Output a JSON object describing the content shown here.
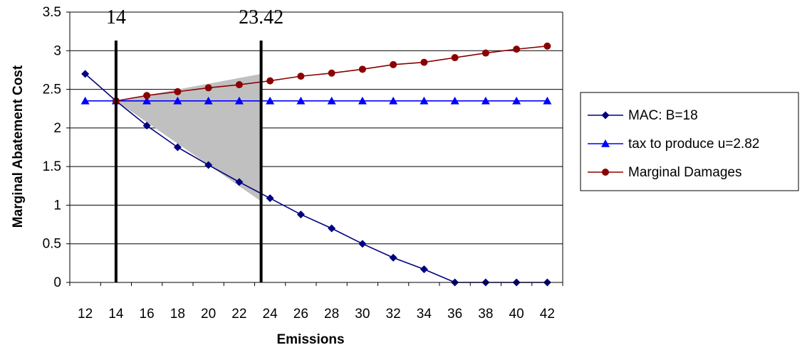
{
  "chart_data": {
    "type": "line",
    "title": "",
    "xlabel": "Emissions",
    "ylabel": "Marginal Abatement Cost",
    "x_ticks": [
      "12",
      "14",
      "16",
      "18",
      "20",
      "22",
      "24",
      "26",
      "28",
      "30",
      "32",
      "34",
      "36",
      "38",
      "40",
      "42"
    ],
    "y_ticks": [
      "0",
      "0.5",
      "1",
      "1.5",
      "2",
      "2.5",
      "3",
      "3.5"
    ],
    "xlim": [
      11,
      43
    ],
    "ylim": [
      0,
      3.5
    ],
    "grid": "horizontal",
    "legend_position": "right",
    "series": [
      {
        "name": "MAC: B=18",
        "color": "#000080",
        "marker": "diamond",
        "x": [
          12,
          14,
          16,
          18,
          20,
          22,
          24,
          26,
          28,
          30,
          32,
          34,
          36,
          38,
          40,
          42
        ],
        "values": [
          2.7,
          2.35,
          2.03,
          1.75,
          1.52,
          1.3,
          1.09,
          0.88,
          0.7,
          0.5,
          0.32,
          0.17,
          0,
          0,
          0,
          0
        ]
      },
      {
        "name": "tax to produce u=2.82",
        "color": "#0000ff",
        "marker": "triangle",
        "x": [
          12,
          14,
          16,
          18,
          20,
          22,
          24,
          26,
          28,
          30,
          32,
          34,
          36,
          38,
          40,
          42
        ],
        "values": [
          2.35,
          2.35,
          2.35,
          2.35,
          2.35,
          2.35,
          2.35,
          2.35,
          2.35,
          2.35,
          2.35,
          2.35,
          2.35,
          2.35,
          2.35,
          2.35
        ]
      },
      {
        "name": "Marginal Damages",
        "color": "#8b0000",
        "marker": "circle",
        "x": [
          14,
          16,
          18,
          20,
          22,
          24,
          26,
          28,
          30,
          32,
          34,
          36,
          38,
          40,
          42
        ],
        "values": [
          2.35,
          2.42,
          2.47,
          2.52,
          2.56,
          2.61,
          2.67,
          2.71,
          2.76,
          2.82,
          2.85,
          2.91,
          2.97,
          3.02,
          3.06
        ]
      }
    ],
    "annotations": [
      {
        "label": "14",
        "x": 14,
        "type": "vertical-line"
      },
      {
        "label": "23.42",
        "x": 23.42,
        "type": "vertical-line"
      }
    ],
    "shaded_region": {
      "color": "#c0c0c0",
      "vertices": [
        [
          14,
          2.35
        ],
        [
          23.42,
          2.7
        ],
        [
          23.42,
          1.05
        ]
      ]
    }
  }
}
